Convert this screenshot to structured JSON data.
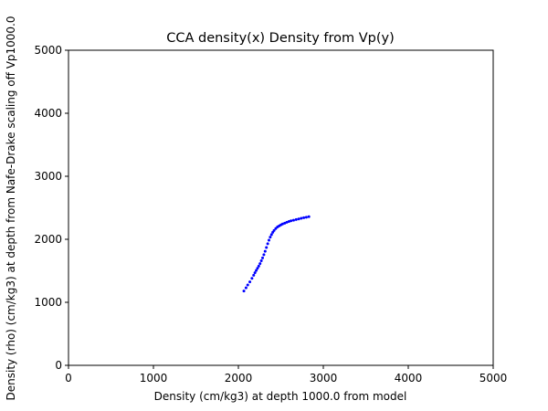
{
  "chart_data": {
    "type": "scatter",
    "title": "CCA density(x) Density from Vp(y)",
    "xlabel": "Density (cm/kg3) at depth 1000.0 from model",
    "ylabel": "Density (rho) (cm/kg3) at depth from Nafe-Drake scaling off Vp1000.0",
    "xlim": [
      0,
      5000
    ],
    "ylim": [
      0,
      5000
    ],
    "xticks": [
      "0",
      "1000",
      "2000",
      "3000",
      "4000",
      "5000"
    ],
    "yticks": [
      "0",
      "1000",
      "2000",
      "3000",
      "4000",
      "5000"
    ],
    "grid": false,
    "marker_color": "#0000ff",
    "series": [
      {
        "x": [
          2065,
          2090,
          2110,
          2135,
          2160,
          2180,
          2195,
          2210,
          2225,
          2240,
          2255,
          2270,
          2285,
          2300,
          2315,
          2330,
          2345,
          2360,
          2375,
          2390,
          2405,
          2420,
          2440,
          2460,
          2480,
          2500,
          2520,
          2545,
          2570,
          2595,
          2620,
          2650,
          2680,
          2710,
          2740,
          2770,
          2800,
          2830
        ],
        "y": [
          1180,
          1230,
          1275,
          1325,
          1380,
          1430,
          1470,
          1505,
          1540,
          1575,
          1615,
          1660,
          1705,
          1755,
          1810,
          1870,
          1930,
          1985,
          2035,
          2075,
          2110,
          2140,
          2170,
          2195,
          2212,
          2228,
          2242,
          2256,
          2270,
          2282,
          2293,
          2303,
          2313,
          2323,
          2333,
          2342,
          2350,
          2358
        ]
      }
    ]
  }
}
